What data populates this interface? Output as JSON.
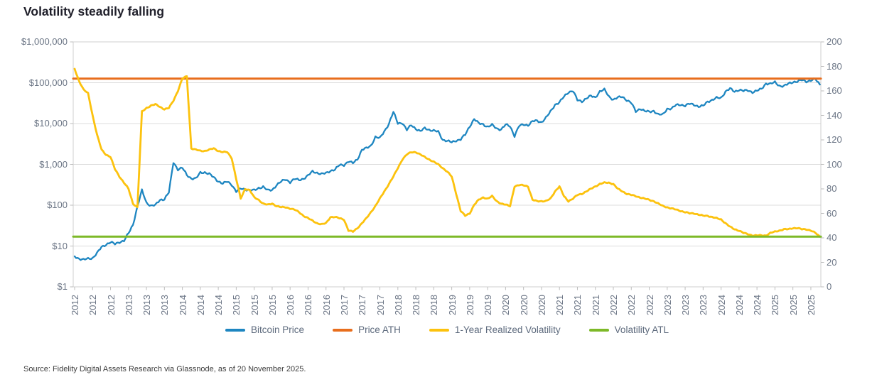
{
  "title": "Volatility steadily falling",
  "source": "Source: Fidelity Digital Assets Research via Glassnode, as of 20 November 2025.",
  "legend": [
    {
      "label": "Bitcoin Price",
      "color": "#1e86c1"
    },
    {
      "label": "Price ATH",
      "color": "#e86e1d"
    },
    {
      "label": "1-Year Realized Volatility",
      "color": "#fcc20e"
    },
    {
      "label": "Volatility ATL",
      "color": "#7db928"
    }
  ],
  "chart_data": {
    "type": "line",
    "title": "Volatility steadily falling",
    "grid": "horizontal-only",
    "legend_position": "bottom-center",
    "x_axis": {
      "start_year": 2012,
      "labels_per_year": 3,
      "tick_labels": [
        "2012",
        "2012",
        "2012",
        "2013",
        "2013",
        "2013",
        "2014",
        "2014",
        "2014",
        "2015",
        "2015",
        "2015",
        "2016",
        "2016",
        "2016",
        "2017",
        "2017",
        "2017",
        "2018",
        "2018",
        "2018",
        "2019",
        "2019",
        "2019",
        "2020",
        "2020",
        "2020",
        "2021",
        "2021",
        "2021",
        "2022",
        "2022",
        "2022",
        "2023",
        "2023",
        "2023",
        "2024",
        "2024",
        "2024",
        "2025",
        "2025",
        "2025"
      ]
    },
    "y_axis_left": {
      "scale": "log",
      "unit": "USD",
      "range": [
        1,
        1000000
      ],
      "tick_labels": [
        "$1,000,000",
        "$100,000",
        "$10,000",
        "$1,000",
        "$100",
        "$10",
        "$1"
      ]
    },
    "y_axis_right": {
      "scale": "linear",
      "range": [
        0,
        200
      ],
      "tick_step": 20,
      "tick_labels": [
        "200",
        "180",
        "160",
        "140",
        "120",
        "100",
        "80",
        "60",
        "40",
        "20",
        "0"
      ]
    },
    "series": [
      {
        "name": "Bitcoin Price",
        "axis": "left",
        "color": "#1e86c1",
        "x_start": 2012.0,
        "x_step": 0.083333,
        "values": [
          5.6,
          4.9,
          4.6,
          4.9,
          5.1,
          6.7,
          9.4,
          10.9,
          12.4,
          11.2,
          12.6,
          13.4,
          20.4,
          33.4,
          93,
          230,
          115,
          97,
          100,
          135,
          141,
          204,
          1130,
          754,
          816,
          550,
          454,
          446,
          627,
          640,
          582,
          477,
          387,
          338,
          378,
          320,
          217,
          254,
          244,
          236,
          230,
          263,
          284,
          230,
          236,
          314,
          377,
          430,
          368,
          437,
          416,
          448,
          531,
          673,
          624,
          575,
          609,
          700,
          745,
          963,
          970,
          1180,
          1071,
          1347,
          2286,
          2480,
          2875,
          4703,
          4360,
          6468,
          9916,
          19200,
          10200,
          10400,
          6940,
          9240,
          7490,
          6400,
          7740,
          7030,
          6630,
          6320,
          4020,
          3740,
          3460,
          3850,
          4100,
          5320,
          8570,
          13000,
          10090,
          9630,
          8290,
          9200,
          7570,
          7190,
          9350,
          8600,
          5000,
          8660,
          9460,
          9140,
          11320,
          11680,
          10780,
          13780,
          19630,
          29000,
          33100,
          45140,
          58900,
          63500,
          37300,
          35000,
          41550,
          47170,
          43790,
          61320,
          67500,
          46310,
          38480,
          43190,
          45540,
          37710,
          31790,
          19780,
          23340,
          20050,
          19430,
          20500,
          16500,
          16550,
          23140,
          23150,
          28480,
          29270,
          27220,
          30480,
          29230,
          25930,
          26970,
          34670,
          37720,
          42270,
          42580,
          61200,
          71330,
          60640,
          67490,
          62680,
          64620,
          58970,
          63330,
          70220,
          96450,
          93430,
          102400,
          84350,
          82550,
          94210,
          104600,
          107140,
          115760,
          108240,
          114060,
          122000,
          90000
        ]
      },
      {
        "name": "Price ATH",
        "axis": "left",
        "color": "#e86e1d",
        "constant": 126000
      },
      {
        "name": "1-Year Realized Volatility",
        "axis": "right",
        "color": "#fcc20e",
        "x_start": 2012.0,
        "x_step": 0.083333,
        "values": [
          178,
          168,
          161,
          158,
          140,
          124,
          112,
          108,
          106,
          96,
          90,
          85,
          80,
          68,
          65,
          143,
          146,
          148,
          149,
          147,
          145,
          146,
          152,
          160,
          170,
          172,
          113,
          112,
          111,
          111,
          112,
          113,
          111,
          110,
          110,
          105,
          88,
          72,
          80,
          79,
          73,
          71,
          68,
          67,
          68,
          66,
          65,
          65,
          64,
          63,
          61,
          58,
          56,
          54,
          52,
          51,
          52,
          57,
          57,
          56,
          55,
          46,
          45,
          48,
          52,
          56,
          61,
          66,
          72,
          78,
          84,
          90,
          97,
          104,
          108,
          110,
          110,
          108,
          106,
          104,
          102,
          100,
          97,
          94,
          90,
          76,
          62,
          58,
          60,
          67,
          71,
          73,
          72,
          74,
          70,
          68,
          67,
          66,
          82,
          83,
          83,
          82,
          71,
          70,
          70,
          70,
          72,
          78,
          82,
          74,
          70,
          72,
          75,
          76,
          78,
          80,
          82,
          84,
          85,
          85,
          84,
          80,
          78,
          76,
          75,
          74,
          73,
          72,
          71,
          70,
          68,
          66,
          65,
          64,
          63,
          62,
          61,
          60,
          60,
          59,
          58,
          58,
          57,
          56,
          55,
          52,
          49,
          47,
          46,
          44,
          43,
          42,
          42,
          42,
          42,
          44,
          45,
          46,
          47,
          47,
          48,
          48,
          47,
          47,
          46,
          44,
          41
        ]
      },
      {
        "name": "Volatility ATL",
        "axis": "right",
        "color": "#7db928",
        "constant": 41
      }
    ]
  }
}
